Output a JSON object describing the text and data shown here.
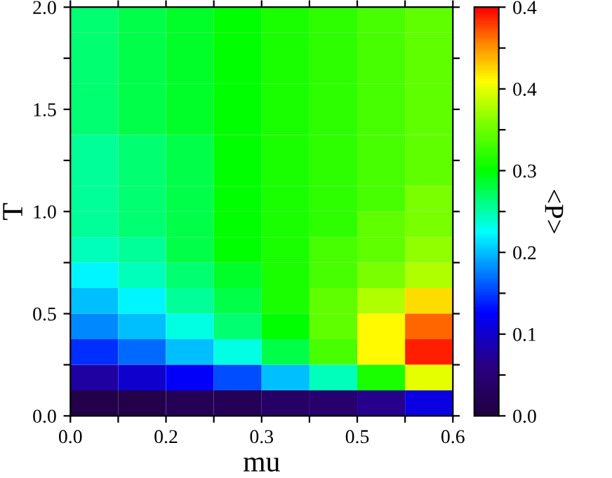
{
  "chart_data": {
    "type": "heatmap",
    "xlabel": "mu",
    "ylabel": "T",
    "clabel": "<P>",
    "xlim": [
      0,
      0.6
    ],
    "ylim": [
      0,
      2.0
    ],
    "xticks": [
      {
        "value": 0,
        "label": "0.0"
      },
      {
        "value": 0.075,
        "label": null
      },
      {
        "value": 0.15,
        "label": "0.2"
      },
      {
        "value": 0.225,
        "label": null
      },
      {
        "value": 0.3,
        "label": "0.3"
      },
      {
        "value": 0.375,
        "label": null
      },
      {
        "value": 0.45,
        "label": "0.5"
      },
      {
        "value": 0.525,
        "label": null
      },
      {
        "value": 0.6,
        "label": "0.6"
      }
    ],
    "yticks": [
      {
        "value": 0,
        "label": "0.0"
      },
      {
        "value": 0.25,
        "label": null
      },
      {
        "value": 0.5,
        "label": "0.5"
      },
      {
        "value": 0.75,
        "label": null
      },
      {
        "value": 1.0,
        "label": "1.0"
      },
      {
        "value": 1.25,
        "label": null
      },
      {
        "value": 1.5,
        "label": "1.5"
      },
      {
        "value": 1.75,
        "label": null
      },
      {
        "value": 2.0,
        "label": "2.0"
      }
    ],
    "clim": [
      0,
      0.45
    ],
    "cticks": [
      {
        "value": 0,
        "label": "0.0"
      },
      {
        "value": 0.045,
        "label": null
      },
      {
        "value": 0.09,
        "label": "0.1"
      },
      {
        "value": 0.135,
        "label": null
      },
      {
        "value": 0.18,
        "label": "0.2"
      },
      {
        "value": 0.225,
        "label": null
      },
      {
        "value": 0.27,
        "label": "0.3"
      },
      {
        "value": 0.315,
        "label": null
      },
      {
        "value": 0.36,
        "label": "0.4"
      },
      {
        "value": 0.405,
        "label": null
      },
      {
        "value": 0.45,
        "label": "0.4"
      }
    ],
    "cells": [
      [
        0.24,
        0.25,
        0.26,
        0.27,
        0.28,
        0.29,
        0.3,
        0.31
      ],
      [
        0.24,
        0.25,
        0.26,
        0.27,
        0.28,
        0.29,
        0.3,
        0.31
      ],
      [
        0.24,
        0.25,
        0.26,
        0.27,
        0.28,
        0.29,
        0.3,
        0.31
      ],
      [
        0.24,
        0.25,
        0.26,
        0.27,
        0.28,
        0.29,
        0.3,
        0.31
      ],
      [
        0.24,
        0.25,
        0.26,
        0.27,
        0.28,
        0.29,
        0.3,
        0.31
      ],
      [
        0.23,
        0.24,
        0.25,
        0.27,
        0.28,
        0.29,
        0.3,
        0.31
      ],
      [
        0.23,
        0.24,
        0.25,
        0.27,
        0.28,
        0.29,
        0.3,
        0.31
      ],
      [
        0.23,
        0.24,
        0.25,
        0.27,
        0.28,
        0.29,
        0.3,
        0.32
      ],
      [
        0.23,
        0.24,
        0.25,
        0.27,
        0.28,
        0.29,
        0.31,
        0.32
      ],
      [
        0.22,
        0.23,
        0.25,
        0.27,
        0.28,
        0.3,
        0.31,
        0.33
      ],
      [
        0.2,
        0.22,
        0.24,
        0.26,
        0.28,
        0.3,
        0.32,
        0.34
      ],
      [
        0.18,
        0.2,
        0.23,
        0.25,
        0.28,
        0.31,
        0.34,
        0.38
      ],
      [
        0.16,
        0.18,
        0.21,
        0.24,
        0.27,
        0.31,
        0.37,
        0.42
      ],
      [
        0.13,
        0.15,
        0.18,
        0.21,
        0.25,
        0.3,
        0.37,
        0.44
      ],
      [
        0.07,
        0.09,
        0.11,
        0.14,
        0.18,
        0.22,
        0.28,
        0.36
      ],
      [
        0.01,
        0.01,
        0.02,
        0.02,
        0.03,
        0.04,
        0.06,
        0.1
      ]
    ]
  }
}
